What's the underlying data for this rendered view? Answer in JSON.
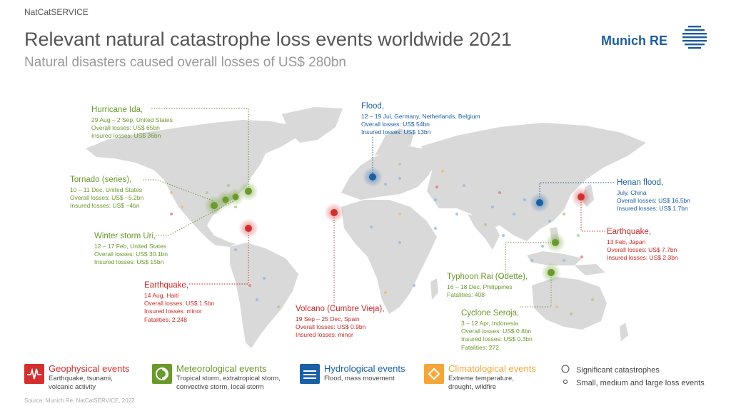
{
  "header": {
    "service": "NatCatSERVICE",
    "title": "Relevant natural catastrophe loss events worldwide 2021",
    "subtitle": "Natural disasters caused overall losses of US$ 280bn",
    "logo_text": "Munich RE"
  },
  "colors": {
    "geophysical": "#d32f2f",
    "meteorological": "#6a9a2c",
    "hydrological": "#1b5fa7",
    "climatological": "#f5a63a",
    "land": "#d9d9d9"
  },
  "events": [
    {
      "id": "ida",
      "name": "Hurricane Ida,",
      "lines": [
        "29 Aug – 2 Sep, United States",
        "Overall losses: US$ 65bn",
        "Insured losses: US$ 36bn"
      ]
    },
    {
      "id": "tornado",
      "name": "Tornado (series),",
      "lines": [
        "10 – 11 Dec, United States",
        "Overall losses: US$ ~5.2bn",
        "Insured losses: US$ ~4bn"
      ]
    },
    {
      "id": "uri",
      "name": "Winter storm Uri,",
      "lines": [
        "12 – 17 Feb, United States",
        "Overall losses: US$ 30.1bn",
        "Insured losses: US$ 15bn"
      ]
    },
    {
      "id": "haiti",
      "name": "Earthquake,",
      "lines": [
        "14 Aug, Haiti",
        "Overall losses: US$ 1.5bn",
        "Insured losses: minor",
        "Fatalities: 2,248"
      ]
    },
    {
      "id": "flood",
      "name": "Flood,",
      "lines": [
        "12 – 19 Jul, Germany, Netherlands, Belgium",
        "Overall losses: US$ 54bn",
        "Insured losses: US$ 13bn"
      ]
    },
    {
      "id": "volcano",
      "name": "Volcano (Cumbre Vieja),",
      "lines": [
        "19 Sep – 25 Dec, Spain",
        "Overall losses: US$ 0.9bn",
        "Insured losses: minor"
      ]
    },
    {
      "id": "henan",
      "name": "Henan flood,",
      "lines": [
        "July, China",
        "Overall losses: US$ 16.5bn",
        "Insured losses: US$ 1.7bn"
      ]
    },
    {
      "id": "japan",
      "name": "Earthquake,",
      "lines": [
        "13 Feb, Japan",
        "Overall losses: US$ 7.7bn",
        "Insured losses: US$ 2.3bn"
      ]
    },
    {
      "id": "rai",
      "name": "Typhoon Rai (Odette),",
      "lines": [
        "16 – 18 Dec, Philippines",
        "Fatalities: 408"
      ]
    },
    {
      "id": "seroja",
      "name": "Cyclone Seroja,",
      "lines": [
        "3 – 12 Apr, Indonesia",
        "Overall losses: US$ 0.8bn",
        "Insured losses: US$ 0.3bn",
        "Fatalities: 272"
      ]
    }
  ],
  "legend": {
    "geophysical": {
      "title": "Geophysical events",
      "desc": [
        "Earthquake, tsunami,",
        "volcanic activity"
      ],
      "icon": "earthquake-icon"
    },
    "meteorological": {
      "title": "Meteorological events",
      "desc": [
        "Tropical storm, extratropical storm,",
        "convective storm, local storm"
      ],
      "icon": "storm-icon"
    },
    "hydrological": {
      "title": "Hydrological events",
      "desc": [
        "Flood, mass movement"
      ],
      "icon": "flood-icon"
    },
    "climatological": {
      "title": "Climatological events",
      "desc": [
        "Extreme temperature,",
        "drought, wildfire"
      ],
      "icon": "drought-icon"
    },
    "significant": "Significant catastrophes",
    "small": "Small, medium and large loss events"
  },
  "source": "Source: Munich Re, NatCatSERVICE, 2022"
}
